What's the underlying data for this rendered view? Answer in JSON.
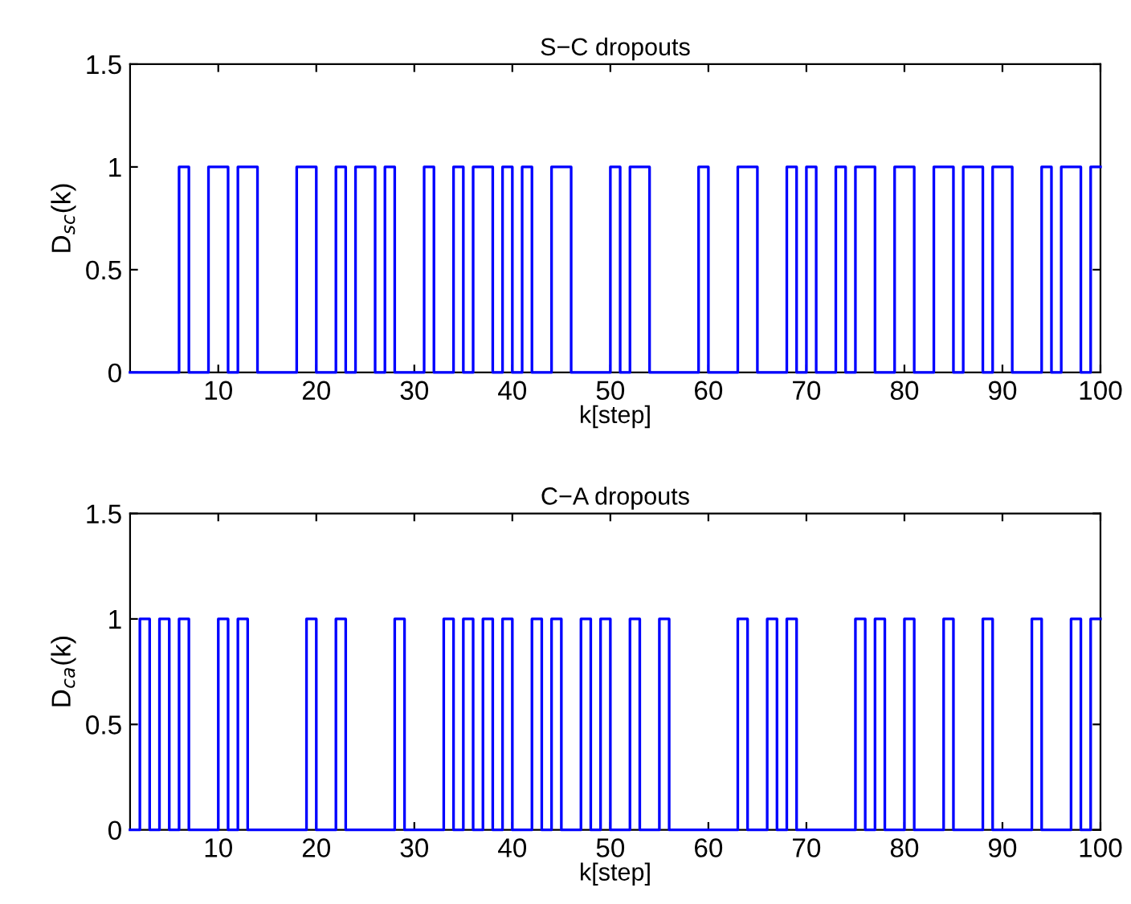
{
  "chart_data": [
    {
      "type": "step",
      "title": "S−C dropouts",
      "xlabel": "k[step]",
      "ylabel": "D$_{sc}$(k)",
      "x": [
        1,
        2,
        3,
        4,
        5,
        6,
        7,
        8,
        9,
        10,
        11,
        12,
        13,
        14,
        15,
        16,
        17,
        18,
        19,
        20,
        21,
        22,
        23,
        24,
        25,
        26,
        27,
        28,
        29,
        30,
        31,
        32,
        33,
        34,
        35,
        36,
        37,
        38,
        39,
        40,
        41,
        42,
        43,
        44,
        45,
        46,
        47,
        48,
        49,
        50,
        51,
        52,
        53,
        54,
        55,
        56,
        57,
        58,
        59,
        60,
        61,
        62,
        63,
        64,
        65,
        66,
        67,
        68,
        69,
        70,
        71,
        72,
        73,
        74,
        75,
        76,
        77,
        78,
        79,
        80,
        81,
        82,
        83,
        84,
        85,
        86,
        87,
        88,
        89,
        90,
        91,
        92,
        93,
        94,
        95,
        96,
        97,
        98,
        99,
        100
      ],
      "series": [
        {
          "color": "#0000ff",
          "values": [
            0,
            0,
            0,
            0,
            0,
            1,
            0,
            0,
            1,
            1,
            0,
            1,
            1,
            0,
            0,
            0,
            0,
            1,
            1,
            0,
            0,
            1,
            0,
            1,
            1,
            0,
            1,
            0,
            0,
            0,
            1,
            0,
            0,
            1,
            0,
            1,
            1,
            0,
            1,
            0,
            1,
            0,
            0,
            1,
            1,
            0,
            0,
            0,
            0,
            1,
            0,
            1,
            1,
            0,
            0,
            0,
            0,
            0,
            1,
            0,
            0,
            0,
            1,
            1,
            0,
            0,
            0,
            1,
            0,
            1,
            0,
            0,
            1,
            0,
            1,
            1,
            0,
            0,
            1,
            1,
            0,
            0,
            1,
            1,
            0,
            1,
            1,
            0,
            1,
            1,
            0,
            0,
            0,
            1,
            0,
            1,
            1,
            0,
            1,
            1
          ]
        }
      ],
      "xlim": [
        1,
        100
      ],
      "ylim": [
        0,
        1.5
      ],
      "xticks": [
        10,
        20,
        30,
        40,
        50,
        60,
        70,
        80,
        90,
        100
      ],
      "yticks": [
        0,
        0.5,
        1,
        1.5
      ],
      "grid": false,
      "legend": false
    },
    {
      "type": "step",
      "title": "C−A dropouts",
      "xlabel": "k[step]",
      "ylabel": "D$_{ca}$(k)",
      "x": [
        1,
        2,
        3,
        4,
        5,
        6,
        7,
        8,
        9,
        10,
        11,
        12,
        13,
        14,
        15,
        16,
        17,
        18,
        19,
        20,
        21,
        22,
        23,
        24,
        25,
        26,
        27,
        28,
        29,
        30,
        31,
        32,
        33,
        34,
        35,
        36,
        37,
        38,
        39,
        40,
        41,
        42,
        43,
        44,
        45,
        46,
        47,
        48,
        49,
        50,
        51,
        52,
        53,
        54,
        55,
        56,
        57,
        58,
        59,
        60,
        61,
        62,
        63,
        64,
        65,
        66,
        67,
        68,
        69,
        70,
        71,
        72,
        73,
        74,
        75,
        76,
        77,
        78,
        79,
        80,
        81,
        82,
        83,
        84,
        85,
        86,
        87,
        88,
        89,
        90,
        91,
        92,
        93,
        94,
        95,
        96,
        97,
        98,
        99,
        100
      ],
      "series": [
        {
          "color": "#0000ff",
          "values": [
            0,
            1,
            0,
            1,
            0,
            1,
            0,
            0,
            0,
            1,
            0,
            1,
            0,
            0,
            0,
            0,
            0,
            0,
            1,
            0,
            0,
            1,
            0,
            0,
            0,
            0,
            0,
            1,
            0,
            0,
            0,
            0,
            1,
            0,
            1,
            0,
            1,
            0,
            1,
            0,
            0,
            1,
            0,
            1,
            0,
            0,
            1,
            0,
            1,
            0,
            0,
            1,
            0,
            0,
            1,
            0,
            0,
            0,
            0,
            0,
            0,
            0,
            1,
            0,
            0,
            1,
            0,
            1,
            0,
            0,
            0,
            0,
            0,
            0,
            1,
            0,
            1,
            0,
            0,
            1,
            0,
            0,
            0,
            1,
            0,
            0,
            0,
            1,
            0,
            0,
            0,
            0,
            1,
            0,
            0,
            0,
            1,
            0,
            1,
            1
          ]
        }
      ],
      "xlim": [
        1,
        100
      ],
      "ylim": [
        0,
        1.5
      ],
      "xticks": [
        10,
        20,
        30,
        40,
        50,
        60,
        70,
        80,
        90,
        100
      ],
      "yticks": [
        0,
        0.5,
        1,
        1.5
      ],
      "grid": false,
      "legend": false
    }
  ]
}
